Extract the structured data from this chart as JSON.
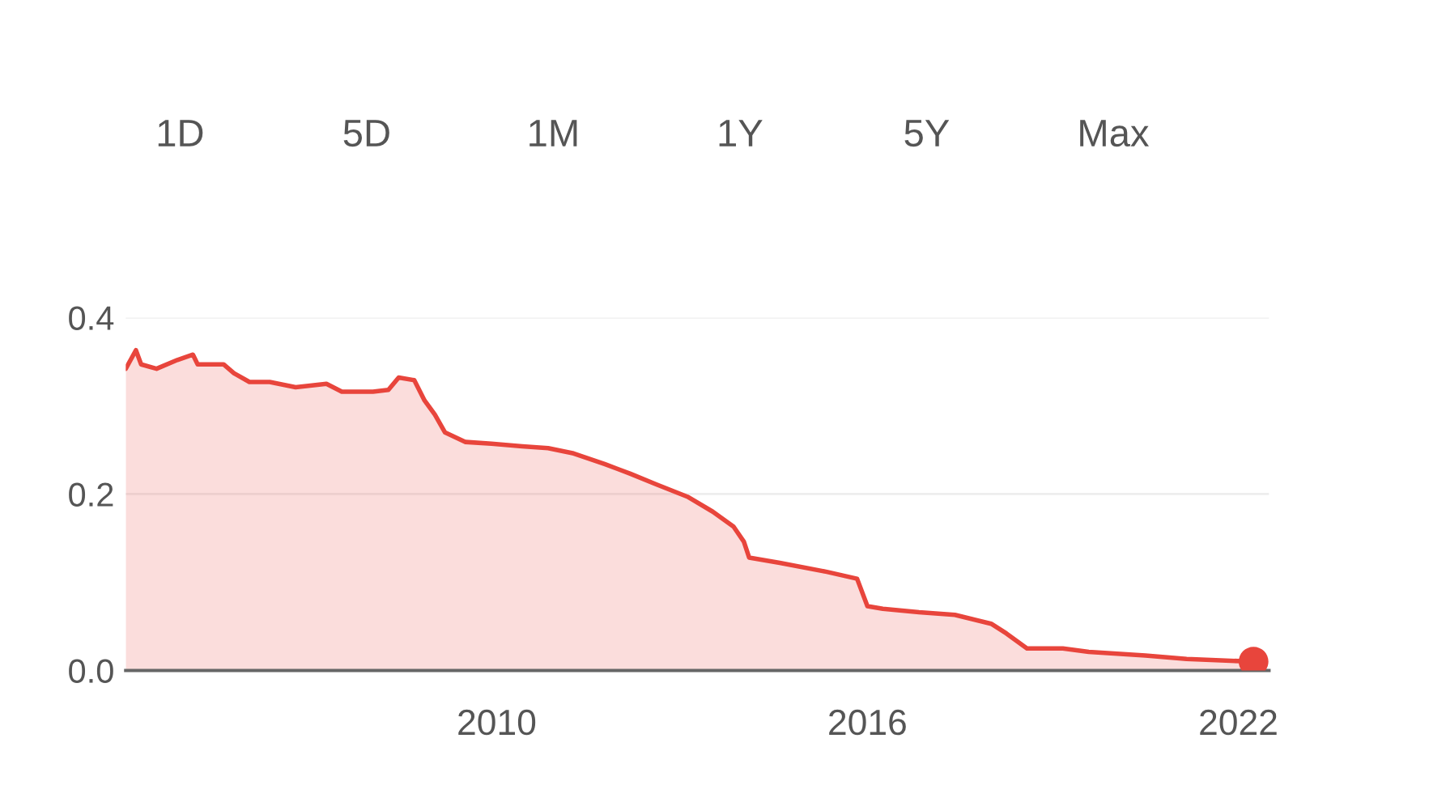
{
  "chart_data": {
    "type": "area",
    "annotations": [
      "1D",
      "5D",
      "1M",
      "1Y",
      "5Y",
      "Max"
    ],
    "x": [
      "2004-01",
      "2004-03",
      "2004-04",
      "2004-07",
      "2004-11",
      "2005-02",
      "2005-03",
      "2005-08",
      "2005-10",
      "2006-01",
      "2006-05",
      "2006-10",
      "2007-04",
      "2007-07",
      "2008-01",
      "2008-04",
      "2008-06",
      "2008-09",
      "2008-11",
      "2009-01",
      "2009-03",
      "2009-07",
      "2009-12",
      "2010-06",
      "2010-11",
      "2011-04",
      "2011-10",
      "2012-03",
      "2012-08",
      "2013-02",
      "2013-07",
      "2013-11",
      "2014-01",
      "2014-02",
      "2014-08",
      "2015-05",
      "2015-11",
      "2016-01",
      "2016-04",
      "2016-11",
      "2017-06",
      "2018-01",
      "2018-04",
      "2018-08",
      "2019-03",
      "2019-08",
      "2020-07",
      "2021-03",
      "2022-04"
    ],
    "series": [
      {
        "color": "#e8453c",
        "values": [
          0.342,
          0.363,
          0.347,
          0.342,
          0.352,
          0.358,
          0.347,
          0.347,
          0.337,
          0.327,
          0.327,
          0.321,
          0.325,
          0.316,
          0.316,
          0.318,
          0.332,
          0.329,
          0.306,
          0.29,
          0.27,
          0.259,
          0.257,
          0.254,
          0.252,
          0.246,
          0.234,
          0.223,
          0.211,
          0.197,
          0.18,
          0.163,
          0.146,
          0.128,
          0.122,
          0.112,
          0.104,
          0.073,
          0.07,
          0.066,
          0.063,
          0.053,
          0.042,
          0.025,
          0.025,
          0.021,
          0.017,
          0.013,
          0.01
        ]
      },
      {
        "type": "scatter",
        "color": "#e8453c",
        "x": [
          "2022-04"
        ],
        "values": [
          0.01
        ]
      }
    ],
    "xlim": [
      "2004-01",
      "2022-07"
    ],
    "xticks": [
      "2010",
      "2016",
      "2022"
    ],
    "ylim": [
      0,
      0.4
    ],
    "yticks": [
      {
        "value": 0,
        "label": "0.0"
      },
      0.2,
      0.4
    ],
    "grid": "y"
  }
}
